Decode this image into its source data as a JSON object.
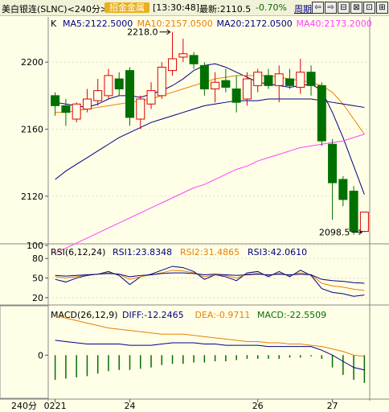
{
  "header": {
    "instrument": "美白银连(SLNC)<240分>",
    "badge": "招金金属",
    "time": "[13:30:48]",
    "latest": "最新:2110.5",
    "change": "-0.70%",
    "period_link": "周期",
    "nav_buttons": [
      "⇦",
      "⇨",
      "⊟",
      "⊠",
      "⊡",
      "⊞"
    ]
  },
  "colors": {
    "up": "#dd0000",
    "down": "#007000",
    "ma5": "#000080",
    "ma10": "#e88000",
    "ma20": "#000080",
    "ma40": "#ff40ff",
    "rsi1": "#000080",
    "rsi2": "#e88000",
    "rsi3": "#000080",
    "diff": "#000080",
    "dea": "#e88000",
    "macd": "#007000"
  },
  "chart_data": [
    {
      "type": "candlestick",
      "label": "K",
      "legend": [
        "MA5:2122.5000",
        "MA10:2157.0500",
        "MA20:2172.0500",
        "MA40:2173.2000"
      ],
      "yticks": [
        2120,
        2160,
        2200
      ],
      "ylim": [
        2093,
        2227
      ],
      "annotations": [
        {
          "text": "2218.0",
          "value": 2218,
          "index": 11
        },
        {
          "text": "2098.5",
          "value": 2098.5,
          "index": 29
        }
      ],
      "candles": [
        {
          "o": 2180,
          "h": 2182,
          "l": 2168,
          "c": 2174
        },
        {
          "o": 2174,
          "h": 2178,
          "l": 2162,
          "c": 2170
        },
        {
          "o": 2166,
          "h": 2176,
          "l": 2164,
          "c": 2175
        },
        {
          "o": 2172,
          "h": 2184,
          "l": 2170,
          "c": 2178
        },
        {
          "o": 2177,
          "h": 2190,
          "l": 2174,
          "c": 2183
        },
        {
          "o": 2180,
          "h": 2196,
          "l": 2178,
          "c": 2192
        },
        {
          "o": 2190,
          "h": 2194,
          "l": 2180,
          "c": 2184
        },
        {
          "o": 2195,
          "h": 2197,
          "l": 2162,
          "c": 2167
        },
        {
          "o": 2166,
          "h": 2180,
          "l": 2160,
          "c": 2178
        },
        {
          "o": 2175,
          "h": 2188,
          "l": 2172,
          "c": 2183
        },
        {
          "o": 2180,
          "h": 2200,
          "l": 2178,
          "c": 2197
        },
        {
          "o": 2195,
          "h": 2218,
          "l": 2192,
          "c": 2202
        },
        {
          "o": 2203,
          "h": 2214,
          "l": 2200,
          "c": 2205
        },
        {
          "o": 2204,
          "h": 2206,
          "l": 2196,
          "c": 2199
        },
        {
          "o": 2198,
          "h": 2200,
          "l": 2180,
          "c": 2184
        },
        {
          "o": 2184,
          "h": 2194,
          "l": 2176,
          "c": 2188
        },
        {
          "o": 2189,
          "h": 2196,
          "l": 2182,
          "c": 2185
        },
        {
          "o": 2184,
          "h": 2192,
          "l": 2170,
          "c": 2176
        },
        {
          "o": 2178,
          "h": 2194,
          "l": 2174,
          "c": 2190
        },
        {
          "o": 2186,
          "h": 2196,
          "l": 2182,
          "c": 2194
        },
        {
          "o": 2192,
          "h": 2196,
          "l": 2184,
          "c": 2186
        },
        {
          "o": 2186,
          "h": 2198,
          "l": 2176,
          "c": 2193
        },
        {
          "o": 2190,
          "h": 2196,
          "l": 2184,
          "c": 2186
        },
        {
          "o": 2185,
          "h": 2202,
          "l": 2181,
          "c": 2194
        },
        {
          "o": 2194,
          "h": 2198,
          "l": 2180,
          "c": 2186
        },
        {
          "o": 2186,
          "h": 2188,
          "l": 2150,
          "c": 2153
        },
        {
          "o": 2151,
          "h": 2154,
          "l": 2106,
          "c": 2128
        },
        {
          "o": 2130,
          "h": 2132,
          "l": 2114,
          "c": 2118
        },
        {
          "o": 2123,
          "h": 2126,
          "l": 2097,
          "c": 2099
        },
        {
          "o": 2099,
          "h": 2110,
          "l": 2098.5,
          "c": 2110.5
        }
      ],
      "ma_series": [
        {
          "name": "MA5",
          "values": [
            2176,
            2175,
            2174,
            2173,
            2175,
            2178,
            2180,
            2180,
            2179,
            2181,
            2183,
            2186,
            2190,
            2195,
            2198,
            2199,
            2197,
            2194,
            2191,
            2188,
            2187,
            2186,
            2185,
            2186,
            2187,
            2183,
            2170,
            2155,
            2138,
            2121
          ]
        },
        {
          "name": "MA10",
          "values": [
            2170,
            2170,
            2171,
            2172,
            2173,
            2174,
            2175,
            2176,
            2177,
            2178,
            2180,
            2182,
            2184,
            2186,
            2188,
            2190,
            2191,
            2192,
            2192,
            2192,
            2192,
            2191,
            2190,
            2189,
            2188,
            2186,
            2182,
            2175,
            2166,
            2157
          ]
        },
        {
          "name": "MA20",
          "values": [
            2130,
            2135,
            2139,
            2143,
            2147,
            2151,
            2155,
            2158,
            2161,
            2164,
            2166,
            2168,
            2170,
            2172,
            2174,
            2175,
            2176,
            2177,
            2177,
            2177,
            2178,
            2178,
            2178,
            2178,
            2178,
            2177,
            2176,
            2175,
            2174,
            2173
          ]
        },
        {
          "name": "MA40",
          "values": [
            2086,
            2089,
            2092,
            2095,
            2098,
            2101,
            2104,
            2107,
            2110,
            2113,
            2116,
            2119,
            2122,
            2125,
            2127,
            2130,
            2133,
            2136,
            2138,
            2141,
            2143,
            2145,
            2147,
            2149,
            2150,
            2151,
            2152,
            2153,
            2155,
            2157
          ]
        }
      ]
    },
    {
      "type": "line",
      "label": "RSI(6,12,24)",
      "legend": [
        "RSI1:23.8348",
        "RSI2:31.4865",
        "RSI3:42.0610"
      ],
      "yticks": [
        20,
        50,
        80,
        100
      ],
      "ylim": [
        10,
        100
      ],
      "series": [
        {
          "name": "RSI1",
          "values": [
            48,
            44,
            50,
            54,
            56,
            60,
            54,
            40,
            52,
            56,
            62,
            68,
            66,
            60,
            48,
            55,
            52,
            46,
            58,
            60,
            52,
            60,
            52,
            62,
            54,
            34,
            28,
            26,
            22,
            24
          ]
        },
        {
          "name": "RSI2",
          "values": [
            52,
            50,
            52,
            55,
            56,
            58,
            56,
            48,
            52,
            55,
            58,
            62,
            61,
            58,
            52,
            55,
            54,
            50,
            56,
            57,
            54,
            57,
            54,
            58,
            55,
            42,
            38,
            36,
            33,
            31
          ]
        },
        {
          "name": "RSI3",
          "values": [
            54,
            53,
            54,
            55,
            56,
            57,
            56,
            52,
            54,
            55,
            57,
            58,
            58,
            57,
            55,
            56,
            55,
            54,
            55,
            56,
            55,
            56,
            55,
            56,
            55,
            48,
            46,
            45,
            43,
            42
          ]
        }
      ]
    },
    {
      "type": "bar",
      "label": "MACD(26,12,9)",
      "legend": [
        "DIFF:-12.2465",
        "DEA:-0.9711",
        "MACD:-22.5509"
      ],
      "yticks": [
        0
      ],
      "ylim": [
        -35,
        40
      ],
      "series": [
        {
          "name": "DIFF",
          "values": [
            12,
            11,
            10,
            9,
            9,
            9,
            9,
            8,
            8,
            8,
            9,
            10,
            10,
            10,
            9,
            9,
            8,
            8,
            8,
            8,
            7,
            7,
            7,
            7,
            7,
            4,
            0,
            -5,
            -10,
            -12
          ]
        },
        {
          "name": "DEA",
          "values": [
            32,
            30,
            28,
            26,
            24,
            22,
            21,
            20,
            19,
            18,
            17,
            17,
            17,
            16,
            15,
            14,
            13,
            12,
            11,
            11,
            10,
            10,
            9,
            9,
            8,
            7,
            5,
            3,
            0,
            -1
          ]
        },
        {
          "name": "MACD",
          "values": [
            -20,
            -19,
            -18,
            -17,
            -15,
            -13,
            -12,
            -12,
            -11,
            -10,
            -8,
            -7,
            -7,
            -6,
            -6,
            -5,
            -5,
            -4,
            -3,
            -3,
            -3,
            -3,
            -2,
            -2,
            -1,
            -3,
            -10,
            -16,
            -20,
            -22.5
          ]
        }
      ]
    }
  ],
  "xaxis": {
    "period_label": "240分",
    "labels": [
      {
        "text": "0221",
        "index": 0
      },
      {
        "text": "24",
        "index": 7
      },
      {
        "text": "26",
        "index": 19
      },
      {
        "text": "27",
        "index": 26
      }
    ]
  }
}
